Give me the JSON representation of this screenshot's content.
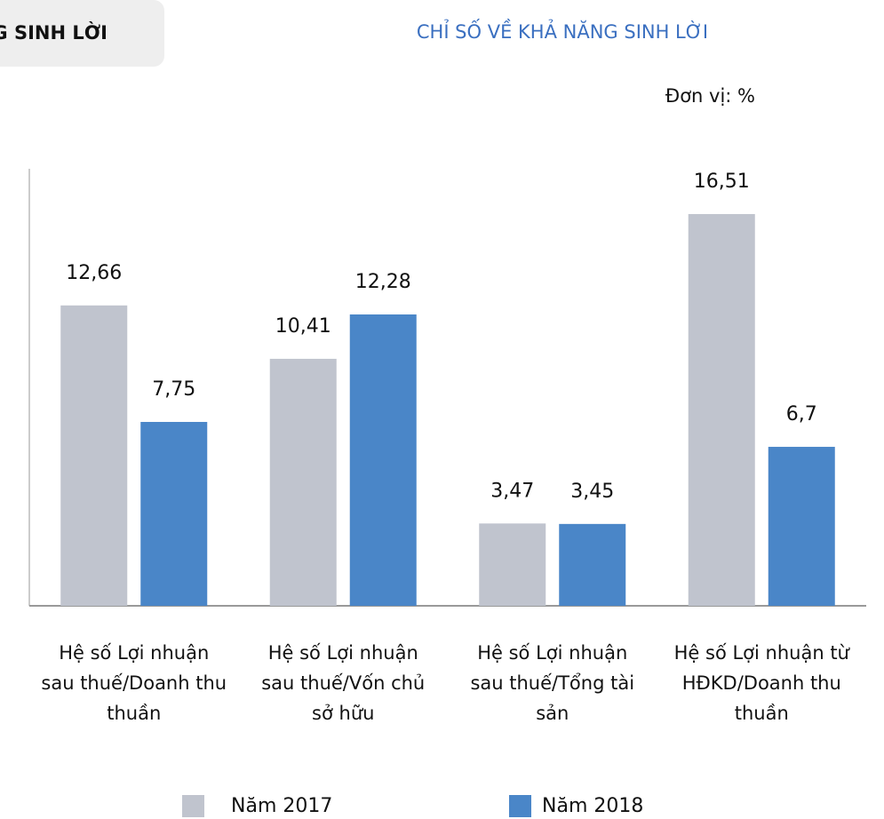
{
  "header": {
    "title": "NĂNG SINH LỜI"
  },
  "chart_data": {
    "type": "bar",
    "title": "CHỈ SỐ VỀ KHẢ NĂNG SINH LỜI",
    "subtitle": "Đơn vị: %",
    "categories": [
      "Hệ số Lợi nhuận sau thuế/Doanh thu thuần",
      "Hệ số Lợi nhuận sau thuế/Vốn chủ sở hữu",
      "Hệ số Lợi nhuận sau thuế/Tổng tài sản",
      "Hệ số Lợi nhuận từ HĐKD/Doanh thu thuần"
    ],
    "series": [
      {
        "name": "Năm 2017",
        "color": "#c0c4ce",
        "values": [
          12.66,
          10.41,
          3.47,
          16.51
        ],
        "value_labels": [
          "12,66",
          "10,41",
          "3,47",
          "16,51"
        ]
      },
      {
        "name": "Năm 2018",
        "color": "#4a86c8",
        "values": [
          7.75,
          12.28,
          3.45,
          6.7
        ],
        "value_labels": [
          "7,75",
          "12,28",
          "3,45",
          "6,7"
        ]
      }
    ]
  }
}
